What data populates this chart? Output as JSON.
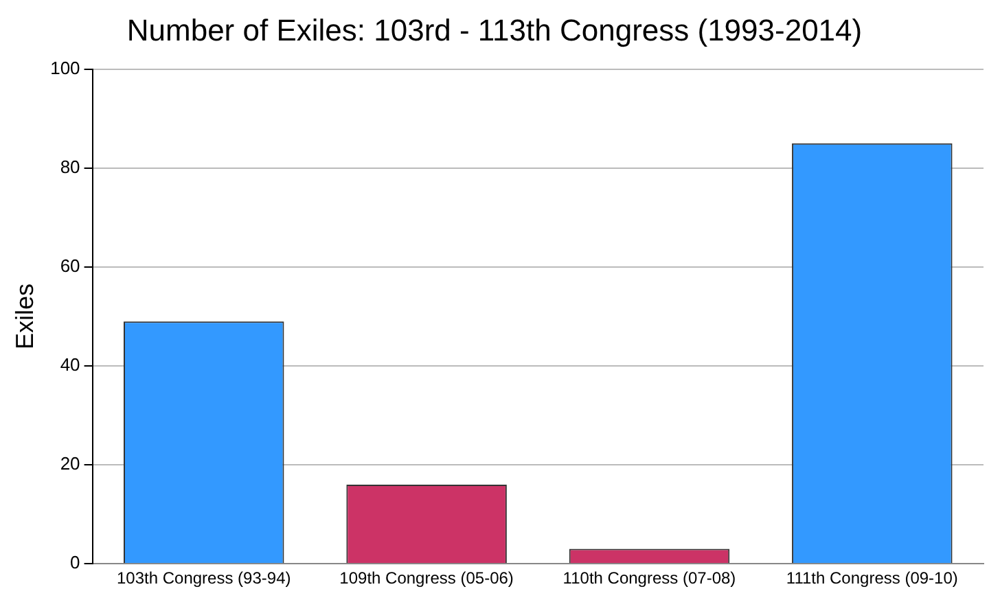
{
  "chart_data": {
    "type": "bar",
    "title": "Number of Exiles: 103rd - 113th Congress (1993-2014)",
    "ylabel": "Exiles",
    "categories": [
      "103th Congress (93-94)",
      "109th Congress (05-06)",
      "110th Congress (07-08)",
      "111th Congress (09-10)"
    ],
    "values": [
      49,
      16,
      3,
      85
    ],
    "colors": [
      "#3399ff",
      "#cc3366",
      "#cc3366",
      "#3399ff"
    ],
    "ylim": [
      0,
      100
    ],
    "yticks": [
      0,
      20,
      40,
      60,
      80,
      100
    ],
    "grid": "y",
    "legend": false
  }
}
